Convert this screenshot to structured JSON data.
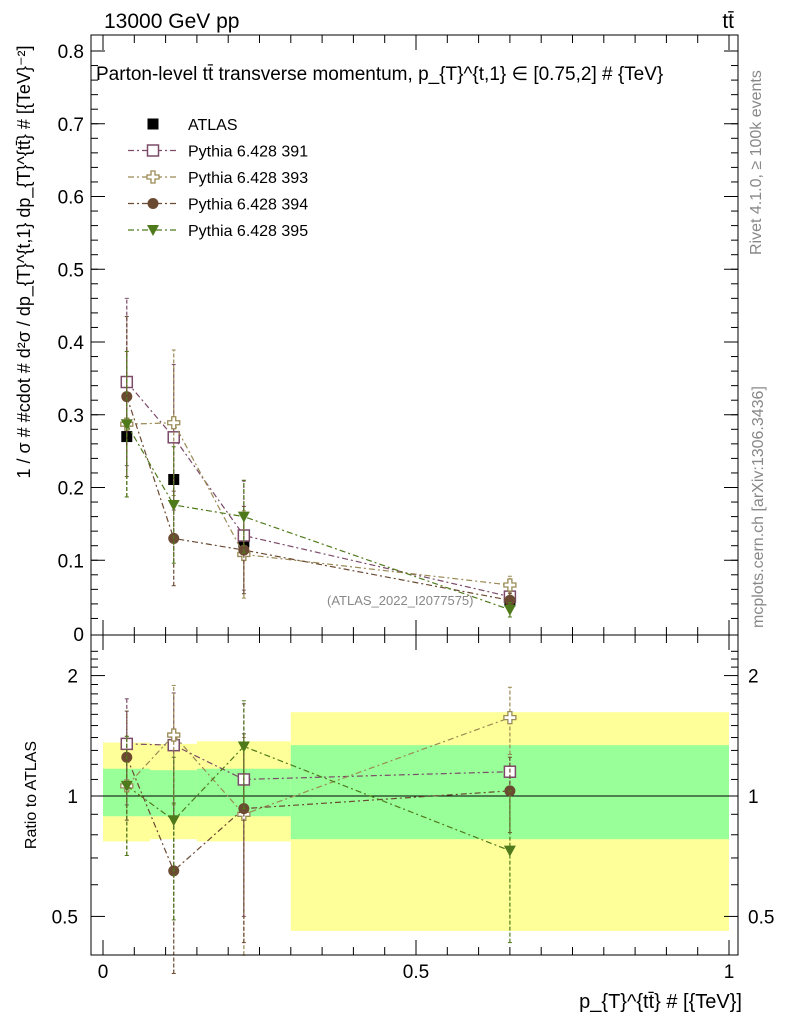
{
  "header": {
    "energy_label": "13000 GeV pp",
    "process_label": "tt̄"
  },
  "side_labels": {
    "rivet": "Rivet 4.1.0, ≥ 100k events",
    "mcplots": "mcplots.cern.ch [arXiv:1306.3436]"
  },
  "chart_data": [
    {
      "type": "scatter",
      "title": "Parton-level tt̄ transverse momentum, p_{T}^{t,1} ∈ [0.75,2] # {TeV}",
      "watermark": "(ATLAS_2022_I2077575)",
      "ylabel": "1 / σ # #cdot # d²σ / dp_{T}^{t,1} dp_{T}^{tt̄} # [{TeV}⁻²]",
      "xlim": [
        0,
        1
      ],
      "ylim": [
        0,
        0.82
      ],
      "yticks": [
        0.1,
        0.2,
        0.3,
        0.4,
        0.5,
        0.6,
        0.7,
        0.8
      ],
      "ytick_labels": [
        "0.1",
        "0.2",
        "0.3",
        "0.4",
        "0.5",
        "0.6",
        "0.7",
        "0.8"
      ],
      "x_edges": [
        0,
        0.075,
        0.15,
        0.3,
        1.0
      ],
      "x": [
        0.038,
        0.113,
        0.225,
        0.65
      ],
      "series": [
        {
          "name": "ATLAS",
          "color": "#000000",
          "marker": "square-filled",
          "values": [
            0.27,
            0.211,
            0.125,
            0.044
          ],
          "errors": [
            0.012,
            0.01,
            0.006,
            0.005
          ]
        },
        {
          "name": "Pythia 6.428 391",
          "color": "#7b4b68",
          "marker": "square-open",
          "values": [
            0.345,
            0.269,
            0.134,
            0.05
          ],
          "errors": [
            0.115,
            0.1,
            0.075,
            0.01
          ]
        },
        {
          "name": "Pythia 6.428 393",
          "color": "#9a8a55",
          "marker": "cross-open",
          "values": [
            0.287,
            0.289,
            0.108,
            0.066
          ],
          "errors": [
            0.1,
            0.1,
            0.06,
            0.012
          ]
        },
        {
          "name": "Pythia 6.428 394",
          "color": "#6b4a32",
          "marker": "circle-filled",
          "values": [
            0.325,
            0.13,
            0.114,
            0.045
          ],
          "errors": [
            0.11,
            0.065,
            0.06,
            0.01
          ]
        },
        {
          "name": "Pythia 6.428 395",
          "color": "#4f7a1c",
          "marker": "triangle-down-filled",
          "values": [
            0.287,
            0.176,
            0.16,
            0.032
          ],
          "errors": [
            0.1,
            0.08,
            0.05,
            0.01
          ]
        }
      ]
    },
    {
      "type": "scatter",
      "ylabel": "Ratio to ATLAS",
      "xlabel": "p_{T}^{tt̄} # [{TeV}]",
      "xlim": [
        0,
        1
      ],
      "ylim": [
        0.35,
        2.35
      ],
      "yticks": [
        0.5,
        1,
        2
      ],
      "ytick_labels": [
        "0.5",
        "1",
        "2"
      ],
      "xticks": [
        0,
        0.5,
        1
      ],
      "xtick_labels": [
        "0",
        "0.5",
        "1"
      ],
      "x_edges": [
        0,
        0.075,
        0.15,
        0.3,
        1.0
      ],
      "x": [
        0.038,
        0.113,
        0.225,
        0.65
      ],
      "band_1sigma": {
        "lo": [
          0.89,
          0.89,
          0.89,
          0.78
        ],
        "hi": [
          1.17,
          1.16,
          1.17,
          1.34
        ],
        "color": "#99ff99"
      },
      "band_2sigma": {
        "lo": [
          0.77,
          0.78,
          0.77,
          0.46
        ],
        "hi": [
          1.36,
          1.35,
          1.37,
          1.62
        ],
        "color": "#ffff99"
      },
      "series": [
        {
          "name": "Pythia 6.428 391",
          "values": [
            1.35,
            1.34,
            1.1,
            1.15
          ],
          "errors": [
            0.4,
            0.47,
            0.6,
            0.12
          ]
        },
        {
          "name": "Pythia 6.428 393",
          "values": [
            1.06,
            1.42,
            0.9,
            1.57
          ],
          "errors": [
            0.35,
            0.47,
            0.5,
            0.3
          ]
        },
        {
          "name": "Pythia 6.428 394",
          "values": [
            1.25,
            0.65,
            0.93,
            1.03
          ],
          "errors": [
            0.38,
            0.31,
            0.5,
            0.22
          ]
        },
        {
          "name": "Pythia 6.428 395",
          "values": [
            1.06,
            0.87,
            1.33,
            0.73
          ],
          "errors": [
            0.35,
            0.38,
            0.4,
            0.3
          ]
        }
      ]
    }
  ]
}
